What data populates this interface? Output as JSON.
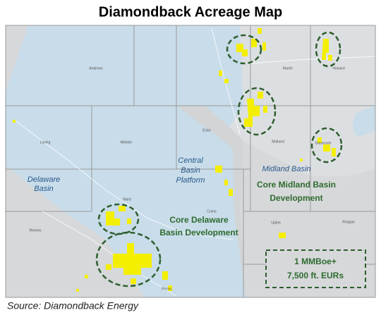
{
  "title": "Diamondback Acreage Map",
  "basins": {
    "delaware": [
      "Delaware",
      "Basin"
    ],
    "central": [
      "Central",
      "Basin",
      "Platform"
    ],
    "midland": "Midland Basin"
  },
  "counties": [
    "Andrews",
    "Martin",
    "Howard",
    "Loving",
    "Winkler",
    "Ector",
    "Midland",
    "Glasscock",
    "Ward",
    "Crane",
    "Reeves",
    "Upton",
    "Reagan",
    "Pecos"
  ],
  "core_areas": {
    "midland": [
      "Core Midland Basin",
      "Development"
    ],
    "delaware": [
      "Core Delaware",
      "Basin Development"
    ]
  },
  "legend": [
    "1 MMBoe+",
    "7,500 ft. EURs"
  ],
  "source": "Source: Diamondback Energy"
}
